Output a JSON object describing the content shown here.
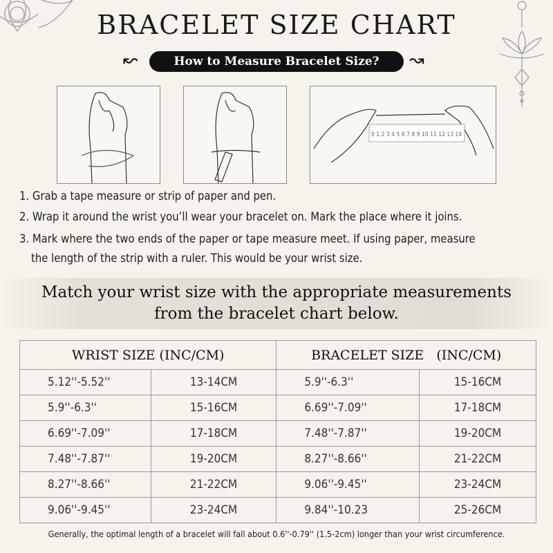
{
  "title": "BRACELET SIZE CHART",
  "subtitle": "How to Measure Bracelet Size?",
  "ruler_numbers": [
    "0",
    "1",
    "2",
    "3",
    "4",
    "5",
    "6",
    "7",
    "8",
    "9",
    "10",
    "11",
    "12",
    "13",
    "14"
  ],
  "instructions": [
    "1. Grab a tape measure or strip of paper and pen.",
    "2. Wrap it around the wrist you’ll wear your bracelet on. Mark the place where it joins.",
    "3. Mark where the two ends of the paper or tape measure meet. If using paper, measure",
    "the length of the strip with a ruler. This would be your wrist size."
  ],
  "match_text": [
    "Match your wrist size with the appropriate measurements",
    "from the bracelet chart below."
  ],
  "table": {
    "headers": [
      "WRIST SIZE (INC/CM)",
      "BRACELET SIZE   (INC/CM)"
    ],
    "rows": [
      [
        "5.12''-5.52''",
        "13-14CM",
        "5.9''-6.3''",
        "15-16CM"
      ],
      [
        "5.9''-6.3''",
        "15-16CM",
        "6.69''-7.09''",
        "17-18CM"
      ],
      [
        "6.69''-7.09''",
        "17-18CM",
        "7.48''-7.87''",
        "19-20CM"
      ],
      [
        "7.48''-7.87''",
        "19-20CM",
        "8.27''-8.66''",
        "21-22CM"
      ],
      [
        "8.27''-8.66''",
        "21-22CM",
        "9.06''-9.45''",
        "23-24CM"
      ],
      [
        "9.06''-9.45''",
        "23-24CM",
        "9.84''-10.23",
        "25-26CM"
      ]
    ]
  },
  "footer": "Generally, the optimal length of a bracelet will fall about 0.6''-0.79'' (1.5-2cm) longer than your wrist circumference."
}
